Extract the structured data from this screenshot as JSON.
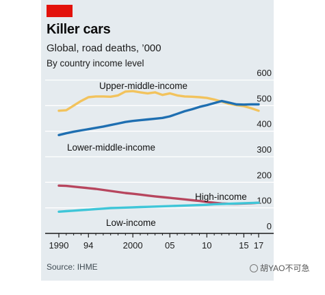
{
  "header": {
    "title": "Killer cars",
    "subtitle": "Global, road deaths, ’000",
    "subsubtitle": "By country income level"
  },
  "footer": {
    "source": "Source: IHME",
    "watermark": "胡YAO不可急"
  },
  "colors": {
    "accent": "#e3120b",
    "background": "#e5ebef",
    "upper_middle": "#f2c35d",
    "lower_middle": "#1f6fb1",
    "high": "#b7465e",
    "low": "#3fc6d8"
  },
  "chart_data": {
    "type": "line",
    "title": "Killer cars",
    "subtitle": "Global, road deaths, ’000",
    "ylim": [
      0,
      600
    ],
    "y_ticks": [
      0,
      100,
      200,
      300,
      400,
      500,
      600
    ],
    "y_axis_position": "right",
    "x_ticks": [
      {
        "value": 1990,
        "label": "1990"
      },
      {
        "value": 1994,
        "label": "94"
      },
      {
        "value": 2000,
        "label": "2000"
      },
      {
        "value": 2005,
        "label": "05"
      },
      {
        "value": 2010,
        "label": "10"
      },
      {
        "value": 2015,
        "label": "15"
      },
      {
        "value": 2017,
        "label": "17"
      }
    ],
    "x": [
      1990,
      1991,
      1992,
      1993,
      1994,
      1995,
      1996,
      1997,
      1998,
      1999,
      2000,
      2001,
      2002,
      2003,
      2004,
      2005,
      2006,
      2007,
      2008,
      2009,
      2010,
      2011,
      2012,
      2013,
      2014,
      2015,
      2016,
      2017
    ],
    "series": [
      {
        "name": "Upper-middle-income",
        "color": "#f2c35d",
        "values": [
          480,
          482,
          500,
          518,
          533,
          536,
          536,
          535,
          540,
          555,
          557,
          552,
          548,
          552,
          542,
          548,
          540,
          536,
          535,
          533,
          530,
          524,
          516,
          507,
          502,
          498,
          490,
          480
        ]
      },
      {
        "name": "Lower-middle-income",
        "color": "#1f6fb1",
        "values": [
          385,
          392,
          398,
          403,
          408,
          413,
          418,
          424,
          430,
          436,
          440,
          443,
          446,
          449,
          452,
          458,
          468,
          478,
          486,
          495,
          502,
          510,
          518,
          512,
          505,
          504,
          505,
          505
        ]
      },
      {
        "name": "High-income",
        "color": "#b7465e",
        "values": [
          187,
          186,
          183,
          180,
          177,
          174,
          170,
          166,
          162,
          158,
          155,
          152,
          148,
          145,
          142,
          139,
          136,
          133,
          130,
          127,
          123,
          120,
          117,
          116,
          116,
          117,
          118,
          120
        ]
      },
      {
        "name": "Low-income",
        "color": "#3fc6d8",
        "values": [
          85,
          87,
          89,
          91,
          93,
          95,
          97,
          99,
          100,
          101,
          102,
          103,
          104,
          105,
          106,
          107,
          108,
          109,
          110,
          111,
          112,
          114,
          115,
          116,
          117,
          118,
          119,
          120
        ]
      }
    ],
    "grid": true,
    "legend": "inline labels"
  }
}
